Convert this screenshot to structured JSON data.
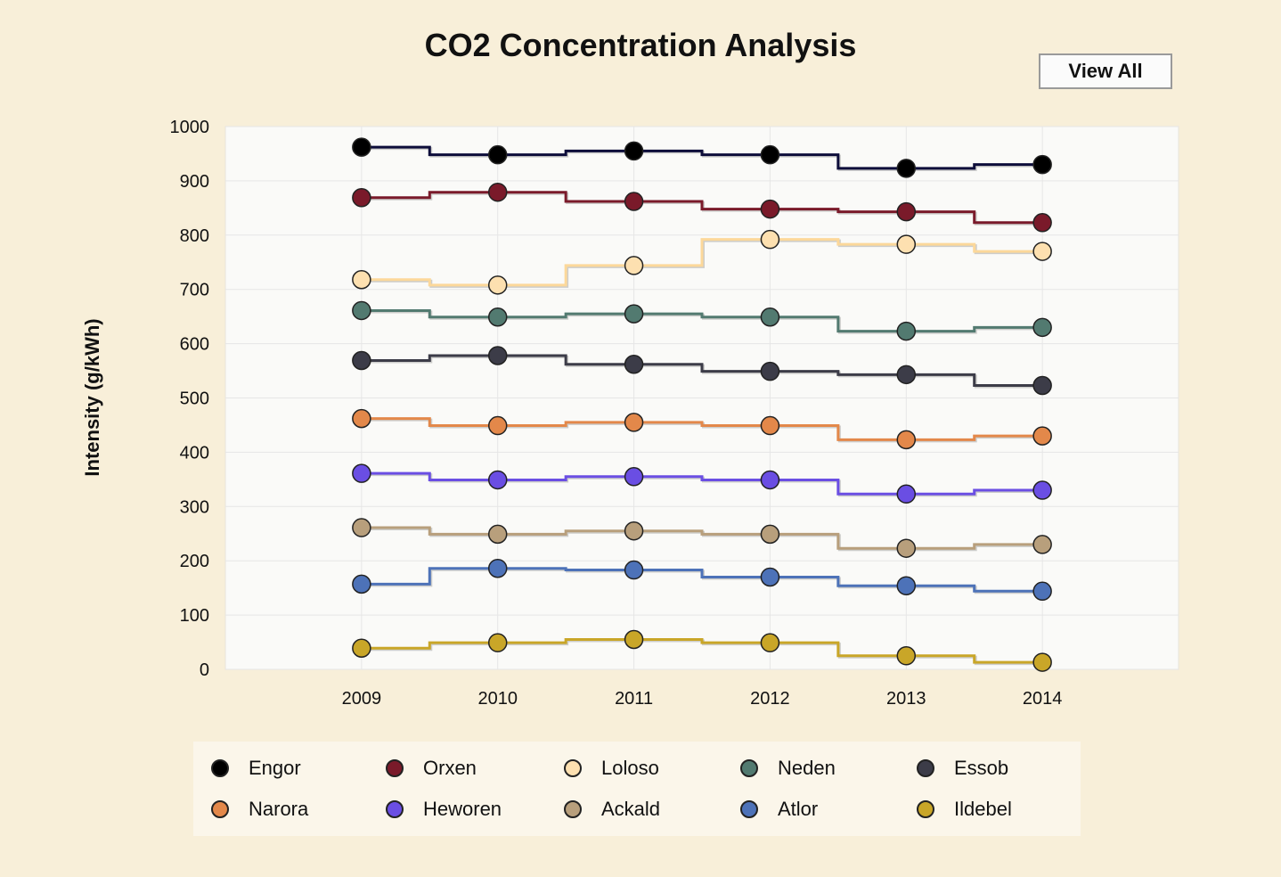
{
  "title": "CO2 Concentration Analysis",
  "view_all_label": "View All",
  "colors": {
    "background": "#f8efd9",
    "plot_background": "#fafaf8",
    "grid": "#e6e6e6"
  },
  "chart_data": {
    "type": "line",
    "step": true,
    "title": "CO2 Concentration Analysis",
    "xlabel": "",
    "ylabel": "Intensity (g/kWh)",
    "x": [
      2009,
      2010,
      2011,
      2012,
      2013,
      2014
    ],
    "xlim": [
      2008,
      2015
    ],
    "ylim": [
      0,
      1000
    ],
    "yticks": [
      0,
      100,
      200,
      300,
      400,
      500,
      600,
      700,
      800,
      900,
      1000
    ],
    "grid": true,
    "legend_position": "bottom",
    "series": [
      {
        "name": "Engor",
        "color": "#0d0d3a",
        "marker_color": "#000000",
        "values": [
          962,
          948,
          955,
          948,
          923,
          930
        ]
      },
      {
        "name": "Orxen",
        "color": "#7a1a2a",
        "marker_color": "#7a1a2a",
        "values": [
          869,
          879,
          862,
          848,
          843,
          823
        ]
      },
      {
        "name": "Loloso",
        "color": "#fcd89a",
        "marker_color": "#fde0b0",
        "values": [
          718,
          708,
          744,
          792,
          783,
          770
        ]
      },
      {
        "name": "Neden",
        "color": "#527a70",
        "marker_color": "#527a70",
        "values": [
          661,
          649,
          655,
          649,
          623,
          630
        ]
      },
      {
        "name": "Essob",
        "color": "#3c3c48",
        "marker_color": "#3c3c48",
        "values": [
          569,
          578,
          562,
          549,
          543,
          523
        ]
      },
      {
        "name": "Narora",
        "color": "#e3884a",
        "marker_color": "#e3884a",
        "values": [
          462,
          449,
          455,
          449,
          423,
          430
        ]
      },
      {
        "name": "Heworen",
        "color": "#6a4ee3",
        "marker_color": "#6a4ee3",
        "values": [
          361,
          349,
          355,
          349,
          323,
          330
        ]
      },
      {
        "name": "Ackald",
        "color": "#b89f7c",
        "marker_color": "#b89f7c",
        "values": [
          261,
          249,
          255,
          249,
          223,
          230
        ]
      },
      {
        "name": "Atlor",
        "color": "#4d72b8",
        "marker_color": "#4d72b8",
        "values": [
          157,
          186,
          183,
          170,
          154,
          144
        ]
      },
      {
        "name": "Ildebel",
        "color": "#c9a628",
        "marker_color": "#c9a628",
        "values": [
          39,
          49,
          55,
          49,
          25,
          13
        ]
      }
    ]
  }
}
